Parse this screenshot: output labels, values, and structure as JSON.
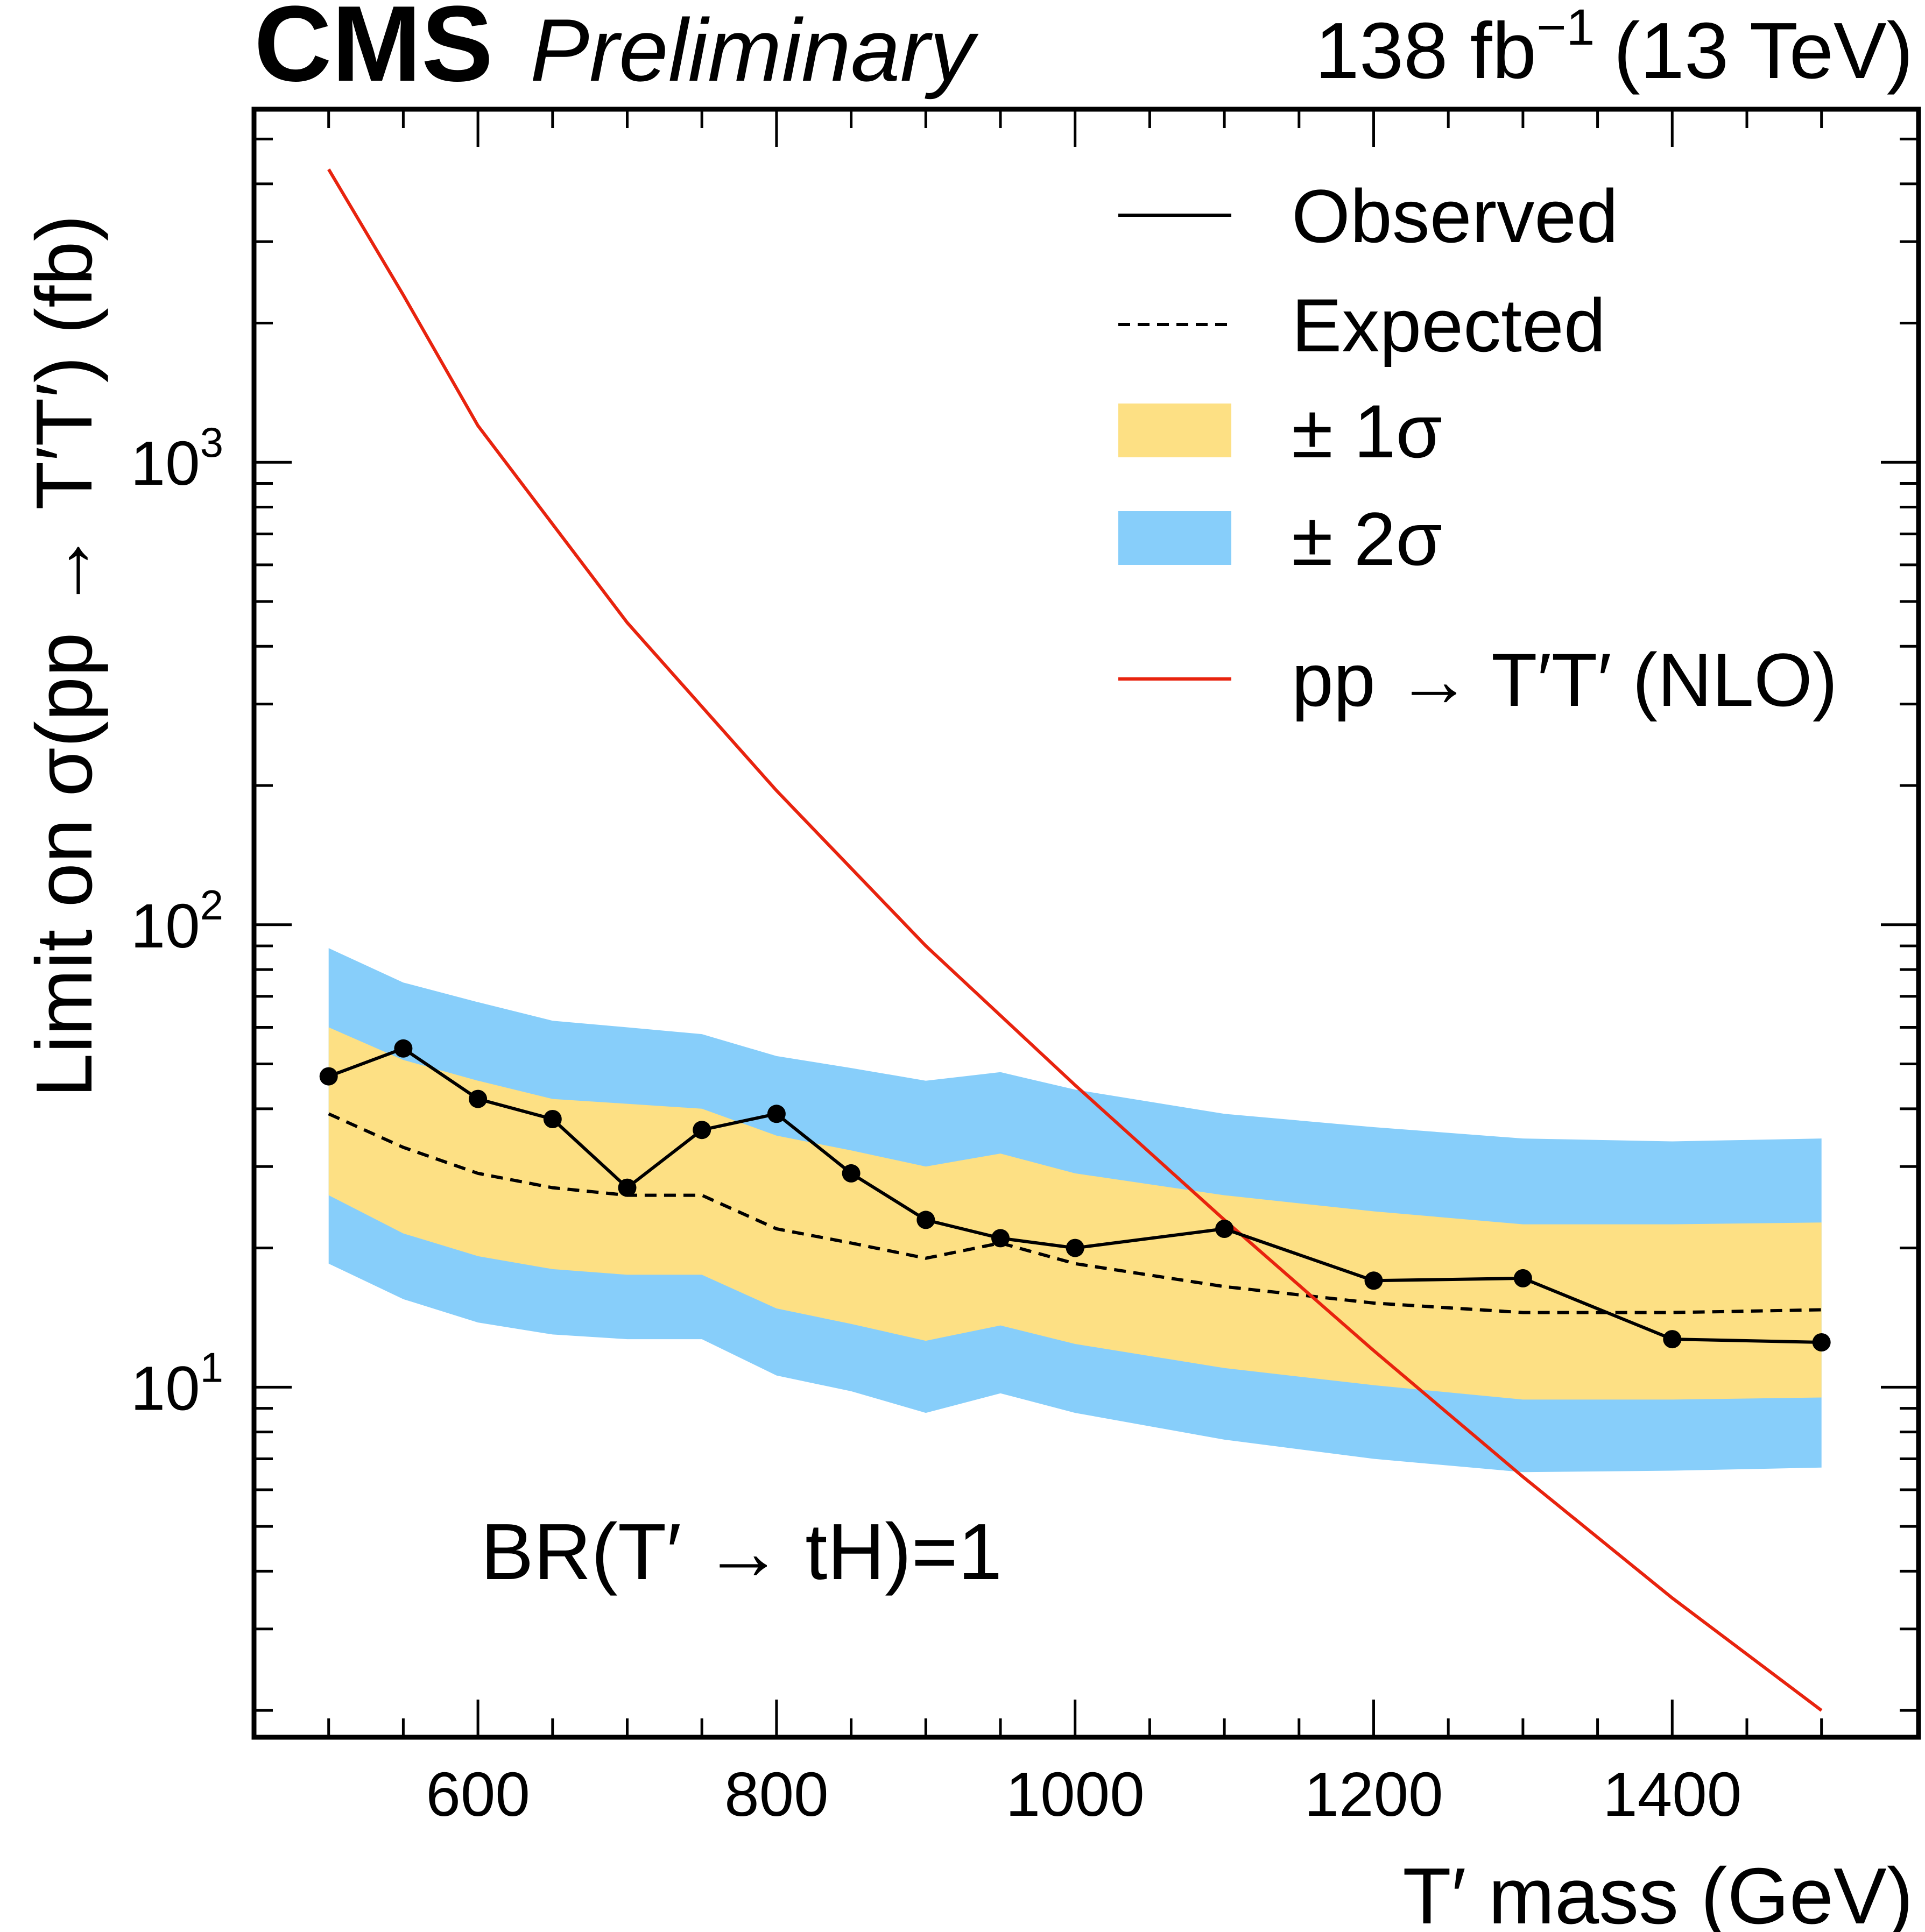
{
  "header": {
    "experiment": "CMS",
    "status": "Preliminary",
    "lumi": "138 fb",
    "lumi_sup": "−1",
    "energy": "(13 TeV)"
  },
  "annotation": "BR(T′ →  tH)=1",
  "colors": {
    "observed": "#000000",
    "expected": "#000000",
    "band_1sigma": "#fde084",
    "band_2sigma": "#87cefa",
    "theory": "#e8230e"
  },
  "chart_data": {
    "type": "line",
    "title": "",
    "xlabel": "T′ mass (GeV)",
    "ylabel": "Limit on σ(pp → T′T′) (fb)",
    "ylog": true,
    "xlim": [
      450,
      1565
    ],
    "ylim": [
      1.75,
      5800
    ],
    "x_ticks": [
      600,
      800,
      1000,
      1200,
      1400
    ],
    "x_tick_labels": [
      "600",
      "800",
      "1000",
      "1200",
      "1400"
    ],
    "y_ticks": [
      10,
      100,
      1000
    ],
    "y_tick_labels": [
      {
        "base": "10",
        "exp": "1"
      },
      {
        "base": "10",
        "exp": "2"
      },
      {
        "base": "10",
        "exp": "3"
      }
    ],
    "legend_position": "top-right",
    "legend": [
      {
        "label": "Observed",
        "style": "solid-line"
      },
      {
        "label": "Expected",
        "style": "dashed-line"
      },
      {
        "label": "± 1σ",
        "style": "band-1sigma"
      },
      {
        "label": "± 2σ",
        "style": "band-2sigma"
      },
      {
        "label": "pp → T′T′ (NLO)",
        "style": "theory-line"
      }
    ],
    "x": [
      500,
      550,
      600,
      650,
      700,
      750,
      800,
      850,
      900,
      950,
      1000,
      1100,
      1200,
      1300,
      1400,
      1500
    ],
    "series": [
      {
        "name": "Observed",
        "values": [
          47,
          54,
          42,
          38,
          27,
          36,
          39,
          29,
          23,
          21,
          20,
          22,
          17,
          17.2,
          12.7,
          12.5
        ]
      },
      {
        "name": "Expected",
        "values": [
          39,
          33,
          29,
          27,
          26,
          26,
          22,
          20.5,
          19,
          20.5,
          18.5,
          16.5,
          15.2,
          14.5,
          14.5,
          14.7
        ]
      },
      {
        "name": "± 1σ",
        "upper": [
          60,
          51,
          46,
          42,
          41,
          40,
          35,
          32.5,
          30,
          32,
          29,
          26,
          24,
          22.5,
          22.5,
          22.7
        ],
        "lower": [
          26,
          21.5,
          19.2,
          18,
          17.5,
          17.5,
          14.8,
          13.7,
          12.6,
          13.6,
          12.4,
          11,
          10.1,
          9.4,
          9.4,
          9.5
        ]
      },
      {
        "name": "± 2σ",
        "upper": [
          89,
          75,
          68,
          62,
          60,
          58,
          52,
          49,
          46,
          48,
          44,
          39,
          36.5,
          34.5,
          34,
          34.5
        ],
        "lower": [
          18.5,
          15.5,
          13.8,
          13,
          12.7,
          12.7,
          10.6,
          9.8,
          8.8,
          9.7,
          8.8,
          7.7,
          7,
          6.55,
          6.6,
          6.7
        ]
      },
      {
        "name": "pp → T′T′ (NLO)",
        "x": [
          500,
          550,
          600,
          700,
          800,
          900,
          1000,
          1100,
          1200,
          1300,
          1400,
          1500
        ],
        "values": [
          4300,
          2300,
          1200,
          450,
          195,
          90,
          45,
          23,
          12,
          6.4,
          3.5,
          2.0
        ]
      }
    ]
  }
}
